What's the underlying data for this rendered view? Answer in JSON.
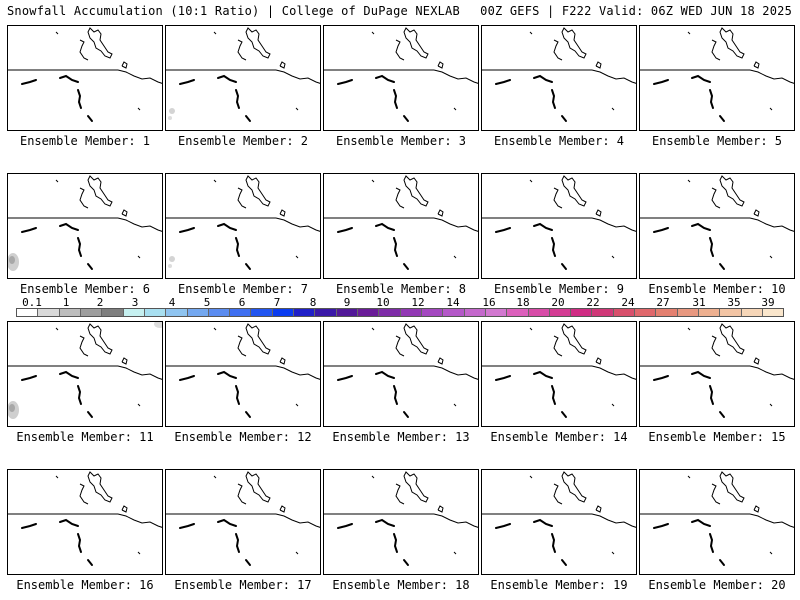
{
  "header": {
    "left": "Snowfall Accumulation (10:1 Ratio) | College of DuPage NEXLAB",
    "right": "00Z GEFS | F222 Valid: 06Z WED JUN 18 2025"
  },
  "panels": [
    {
      "label": "Ensemble Member: 1",
      "snow": []
    },
    {
      "label": "Ensemble Member: 2",
      "snow": [
        "light-sw"
      ]
    },
    {
      "label": "Ensemble Member: 3",
      "snow": []
    },
    {
      "label": "Ensemble Member: 4",
      "snow": []
    },
    {
      "label": "Ensemble Member: 5",
      "snow": []
    },
    {
      "label": "Ensemble Member: 6",
      "snow": [
        "sw-patch"
      ]
    },
    {
      "label": "Ensemble Member: 7",
      "snow": [
        "light-sw"
      ]
    },
    {
      "label": "Ensemble Member: 8",
      "snow": []
    },
    {
      "label": "Ensemble Member: 9",
      "snow": []
    },
    {
      "label": "Ensemble Member: 10",
      "snow": []
    },
    {
      "label": "Ensemble Member: 11",
      "snow": [
        "sw-patch",
        "ne-corner"
      ]
    },
    {
      "label": "Ensemble Member: 12",
      "snow": []
    },
    {
      "label": "Ensemble Member: 13",
      "snow": []
    },
    {
      "label": "Ensemble Member: 14",
      "snow": []
    },
    {
      "label": "Ensemble Member: 15",
      "snow": []
    },
    {
      "label": "Ensemble Member: 16",
      "snow": []
    },
    {
      "label": "Ensemble Member: 17",
      "snow": []
    },
    {
      "label": "Ensemble Member: 18",
      "snow": []
    },
    {
      "label": "Ensemble Member: 19",
      "snow": []
    },
    {
      "label": "Ensemble Member: 20",
      "snow": []
    }
  ],
  "colorbar": {
    "labels": [
      "0.1",
      "1",
      "2",
      "3",
      "4",
      "5",
      "6",
      "7",
      "8",
      "9",
      "10",
      "12",
      "14",
      "16",
      "18",
      "20",
      "22",
      "24",
      "27",
      "31",
      "35",
      "39"
    ],
    "colors": [
      "#ffffff",
      "#d9d9d9",
      "#bdbdbd",
      "#9e9e9e",
      "#7f7f7f",
      "#c6f0f0",
      "#a8dff0",
      "#8fc4f0",
      "#74a8f0",
      "#5b8cf0",
      "#3f6ff0",
      "#2255f0",
      "#0a3cf0",
      "#2020c8",
      "#3a18a8",
      "#521898",
      "#6a1c98",
      "#7e2ca8",
      "#9238b4",
      "#a448c0",
      "#b458c8",
      "#c468cc",
      "#d278d0",
      "#dc60bc",
      "#d84ca8",
      "#d43c94",
      "#d02c84",
      "#d03878",
      "#d8506c",
      "#e0686c",
      "#e48070",
      "#e89880",
      "#eeb090",
      "#f2c4a4",
      "#f6d6b8",
      "#fae6cc"
    ],
    "accent_lines": "#000000"
  }
}
